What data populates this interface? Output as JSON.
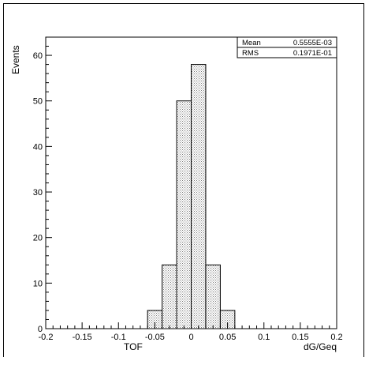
{
  "chart_data": {
    "type": "bar",
    "title": "",
    "xlabel": "dG/Geq",
    "ylabel": "Events",
    "extra_label": "TOF",
    "xlim": [
      -0.2,
      0.2
    ],
    "ylim": [
      0,
      64
    ],
    "x_major_ticks": [
      -0.2,
      -0.15,
      -0.1,
      -0.05,
      0,
      0.05,
      0.1,
      0.15,
      0.2
    ],
    "x_tick_labels": [
      "-0.2",
      "-0.15",
      "-0.1",
      "-0.05",
      "0",
      "0.05",
      "0.1",
      "0.15",
      "0.2"
    ],
    "y_major_ticks": [
      0,
      10,
      20,
      30,
      40,
      50,
      60
    ],
    "y_tick_labels": [
      "0",
      "10",
      "20",
      "30",
      "40",
      "50",
      "60"
    ],
    "bins": [
      {
        "low": -0.06,
        "high": -0.04,
        "count": 4
      },
      {
        "low": -0.04,
        "high": -0.02,
        "count": 14
      },
      {
        "low": -0.02,
        "high": 0.0,
        "count": 50
      },
      {
        "low": 0.0,
        "high": 0.02,
        "count": 58
      },
      {
        "low": 0.02,
        "high": 0.04,
        "count": 14
      },
      {
        "low": 0.04,
        "high": 0.06,
        "count": 4
      }
    ],
    "fill": "hatched-dots",
    "stats": {
      "rows": [
        {
          "label": "Mean",
          "value": "0.5555E-03"
        },
        {
          "label": "RMS",
          "value": "0.1971E-01"
        }
      ]
    },
    "grid": false,
    "legend": "top-right"
  }
}
